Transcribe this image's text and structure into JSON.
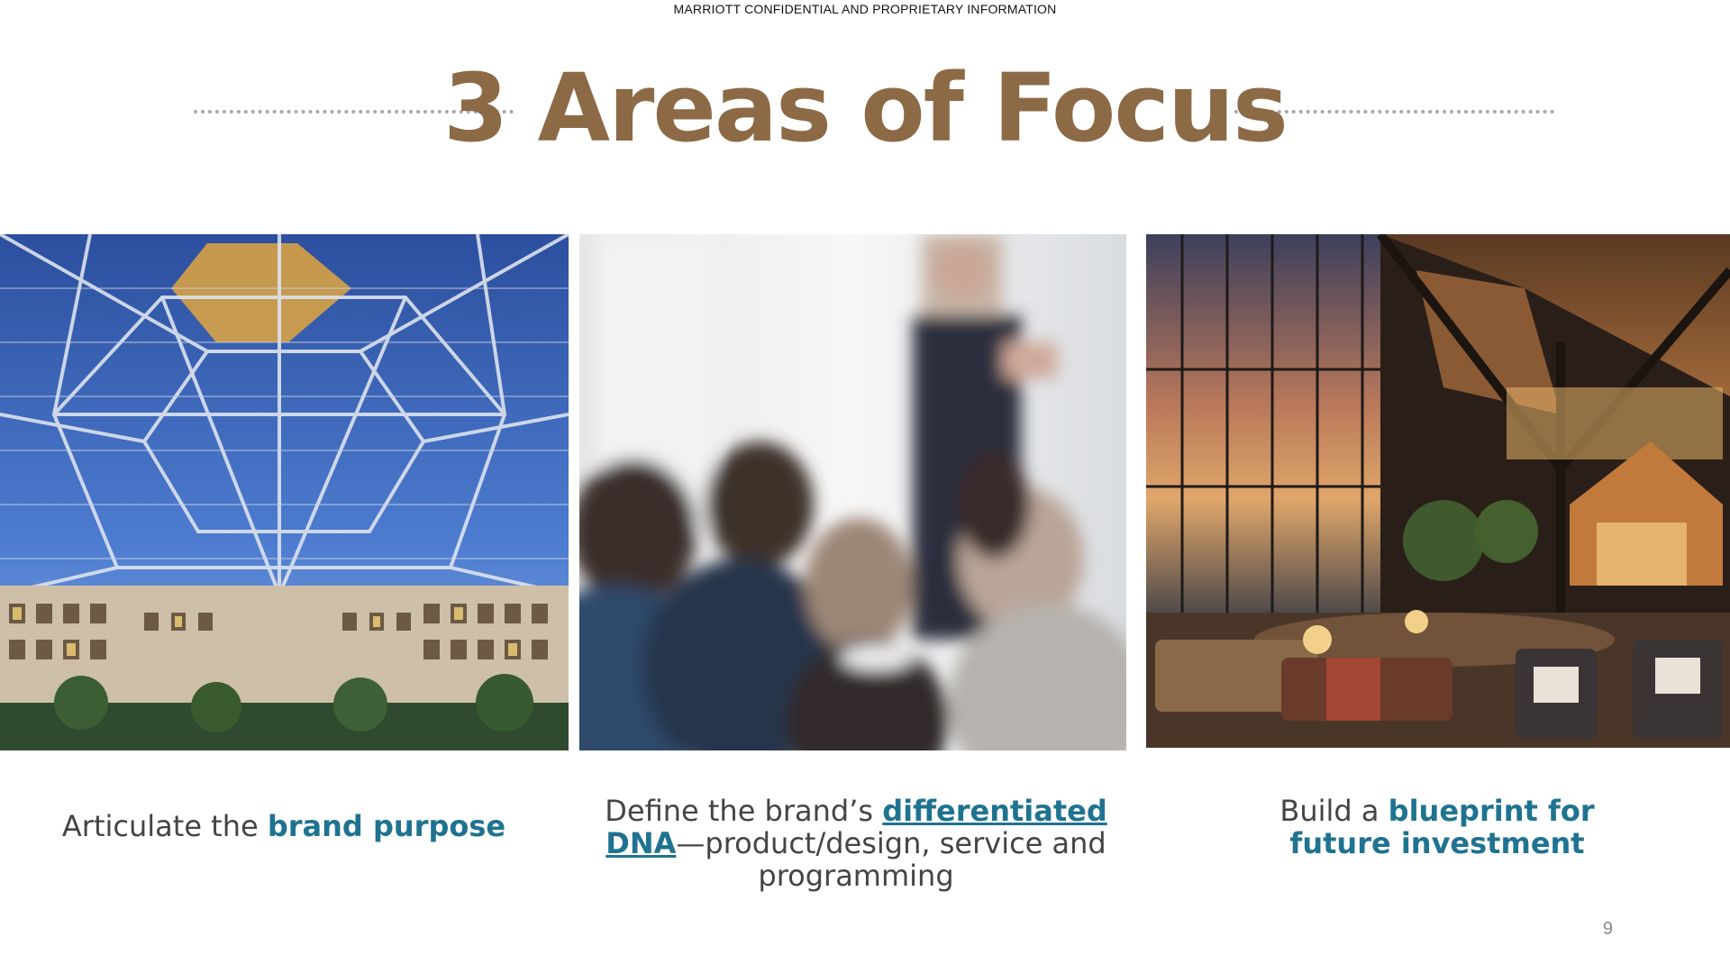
{
  "header": {
    "confidential": "MARRIOTT CONFIDENTIAL AND PROPRIETARY INFORMATION",
    "title": "3 Areas of Focus"
  },
  "panels": [
    {
      "image": "atrium-dome-photo",
      "caption_pre": "Articulate the ",
      "caption_highlight": "brand purpose",
      "caption_post": ""
    },
    {
      "image": "conference-audience-photo",
      "caption_pre": "Define the brand’s ",
      "caption_highlight": "differentiated DNA",
      "caption_post": "—product/design, service and programming"
    },
    {
      "image": "lodge-lobby-photo",
      "caption_pre": "Build a ",
      "caption_highlight": "blueprint for future investment",
      "caption_post": ""
    }
  ],
  "footer": {
    "page_number": "9"
  },
  "colors": {
    "title": "#8c6a45",
    "highlight": "#1f7390",
    "body_text": "#444444"
  }
}
